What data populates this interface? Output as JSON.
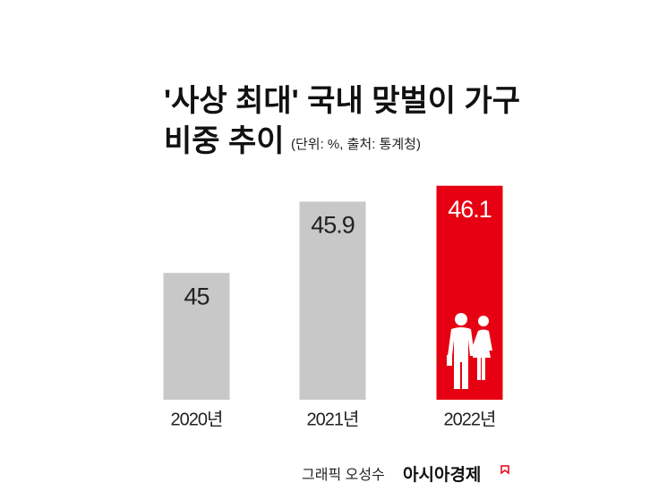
{
  "chart_data": {
    "type": "bar",
    "title": "'사상 최대' 국내 맞벌이 가구",
    "title_line2": "비중 추이",
    "subtitle": "(단위: %, 출처: 통계청)",
    "categories": [
      "2020년",
      "2021년",
      "2022년"
    ],
    "values": [
      45,
      45.9,
      46.1
    ],
    "colors": [
      "#c8c8c8",
      "#c8c8c8",
      "#e60012"
    ],
    "value_label_colors": [
      "#222222",
      "#222222",
      "#ffffff"
    ],
    "ylim": [
      43.4,
      46.3
    ],
    "credit": "그래픽 오성수",
    "source_brand": "아시아경제"
  }
}
